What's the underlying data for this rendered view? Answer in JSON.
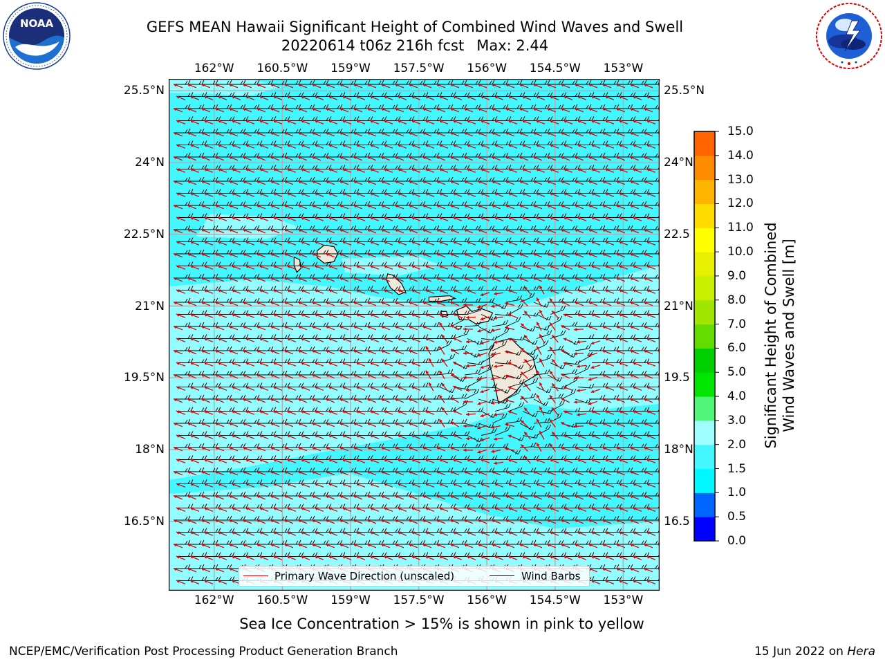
{
  "title": {
    "line1": "GEFS MEAN Hawaii Significant Height of Combined Wind Waves and Swell",
    "run": "20220614 t06z 216h fcst",
    "max": "Max: 2.44"
  },
  "logos": {
    "left": {
      "name": "noaa-logo",
      "text": "NOAA",
      "ring_text": "NATIONAL OCEANIC AND ATMOSPHERIC ADMINISTRATION · U.S. DEPARTMENT OF COMMERCE"
    },
    "right": {
      "name": "nws-logo",
      "ring_text": "NATIONAL WEATHER SERVICE"
    }
  },
  "map": {
    "lon_ticks": [
      "162°W",
      "160.5°W",
      "159°W",
      "157.5°W",
      "156°W",
      "154.5°W",
      "153°W"
    ],
    "lon_values": [
      -162,
      -160.5,
      -159,
      -157.5,
      -156,
      -154.5,
      -153
    ],
    "lat_ticks": [
      "25.5°N",
      "24°N",
      "22.5°N",
      "21°N",
      "19.5°N",
      "18°N",
      "16.5°N"
    ],
    "lat_values": [
      25.5,
      24,
      22.5,
      21,
      19.5,
      18,
      16.5
    ],
    "right_lat_ticks": [
      "25.5°N",
      "24°N",
      "22.5",
      "21°N",
      "19.5",
      "18°N",
      "16.5"
    ],
    "extent": {
      "lon_min": -163,
      "lon_max": -152.2,
      "lat_min": 15.05,
      "lat_max": 25.75
    },
    "background_color": "#44f7ff",
    "light_band_color": "#a0fdff",
    "land_color": "#eee9da",
    "grid_color": "#b0b0b0",
    "wave_arrow_color": "#e00000",
    "barb_color": "#000000",
    "islands": [
      {
        "name": "Niihau",
        "lon": -160.15,
        "lat": 21.88
      },
      {
        "name": "Kauai",
        "lon": -159.52,
        "lat": 22.07
      },
      {
        "name": "Oahu",
        "lon": -158.0,
        "lat": 21.47
      },
      {
        "name": "Molokai",
        "lon": -157.0,
        "lat": 21.13
      },
      {
        "name": "Lanai",
        "lon": -156.92,
        "lat": 20.83
      },
      {
        "name": "Kahoolawe",
        "lon": -156.6,
        "lat": 20.55
      },
      {
        "name": "Maui",
        "lon": -156.3,
        "lat": 20.8
      },
      {
        "name": "Hawaii",
        "lon": -155.5,
        "lat": 19.6
      }
    ]
  },
  "legend": {
    "wave": {
      "label": "Primary Wave Direction (unscaled)",
      "color": "#e00000"
    },
    "barb": {
      "label": "Wind Barbs",
      "color": "#000000"
    }
  },
  "colorbar": {
    "title_line1": "Significant Height of Combined",
    "title_line2": "Wind Waves and Swell [m]",
    "tick_labels": [
      "15.0",
      "14.0",
      "13.0",
      "12.0",
      "11.0",
      "10.0",
      "9.0",
      "8.0",
      "7.0",
      "6.0",
      "5.0",
      "4.0",
      "3.0",
      "2.0",
      "1.5",
      "1.0",
      "0.5",
      "0.0"
    ],
    "colors_bottom_to_top": [
      "#0000ff",
      "#0064ff",
      "#00f7ff",
      "#44f7ff",
      "#a0fdff",
      "#50f57a",
      "#00e600",
      "#00d000",
      "#64dc00",
      "#a0e600",
      "#c8f000",
      "#e6f000",
      "#ffff00",
      "#ffdc00",
      "#ffb400",
      "#ff8c00",
      "#ff6400",
      "#ff3200",
      "#ff0000"
    ]
  },
  "sea_ice_note": "Sea Ice Concentration > 15% is shown in pink to yellow",
  "footer": {
    "left": "NCEP/EMC/Verification Post Processing Product Generation Branch",
    "date": "15 Jun 2022 on",
    "machine": "Hera"
  }
}
